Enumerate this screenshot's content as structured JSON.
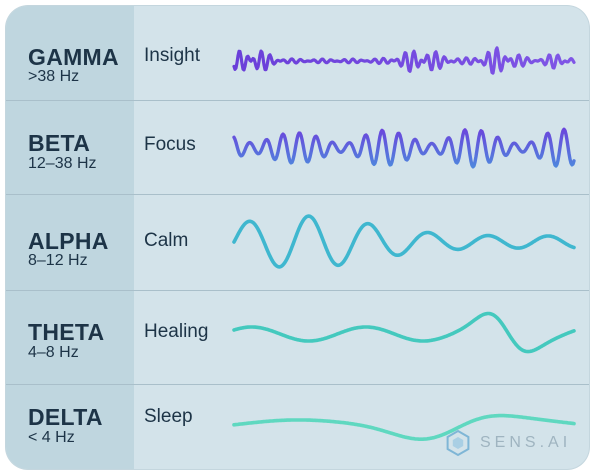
{
  "bands": [
    {
      "name": "GAMMA",
      "range": ">38 Hz",
      "state": "Insight",
      "color_start": "#6a3fd9",
      "color_end": "#7f56e6"
    },
    {
      "name": "BETA",
      "range": "12–38 Hz",
      "state": "Focus",
      "color_start": "#6a46dc",
      "color_end": "#4f86dd"
    },
    {
      "name": "ALPHA",
      "range": "8–12 Hz",
      "state": "Calm",
      "color_start": "#3fb7cf",
      "color_end": "#3fb7cf"
    },
    {
      "name": "THETA",
      "range": "4–8 Hz",
      "state": "Healing",
      "color_start": "#44c9be",
      "color_end": "#44c9be"
    },
    {
      "name": "DELTA",
      "range": "< 4 Hz",
      "state": "Sleep",
      "color_start": "#5fd8c0",
      "color_end": "#5fd8c0"
    }
  ],
  "logo": {
    "text": "SENS.AI",
    "icon": "hexagon-logo-icon"
  }
}
